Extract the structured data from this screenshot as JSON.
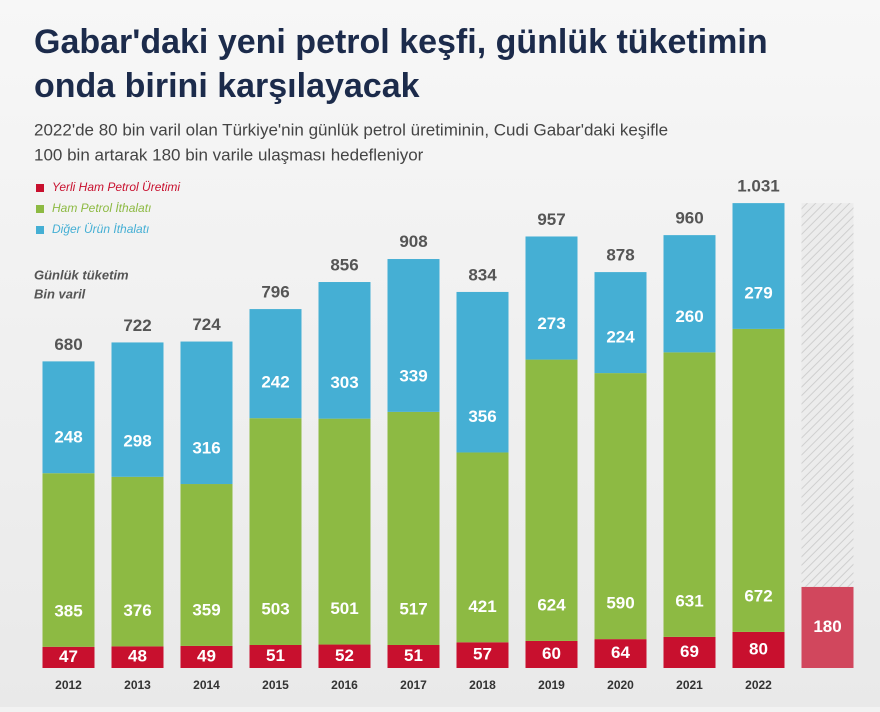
{
  "chart_data": {
    "type": "stacked_bar",
    "title": [
      "Gabar'daki yeni petrol keşfi, günlük tüketimin",
      "onda birini karşılayacak"
    ],
    "subtitle": [
      "2022'de 80 bin varil olan Türkiye'nin günlük petrol üretiminin, Cudi Gabar'daki keşifle",
      "100 bin artarak 180 bin varile ulaşması hedefleniyor"
    ],
    "y_label": [
      "Günlük tüketim",
      "Bin varil"
    ],
    "categories": [
      "2012",
      "2013",
      "2014",
      "2015",
      "2016",
      "2017",
      "2018",
      "2019",
      "2020",
      "2021",
      "2022",
      null
    ],
    "series": [
      {
        "name": "Yerli Ham Petrol Üretimi",
        "color": "#c8102e",
        "values": [
          47,
          48,
          49,
          51,
          52,
          51,
          57,
          60,
          64,
          69,
          80,
          180
        ]
      },
      {
        "name": "Ham Petrol İthalatı",
        "color": "#8dba43",
        "values": [
          385,
          376,
          359,
          503,
          501,
          517,
          421,
          624,
          590,
          631,
          672,
          null
        ]
      },
      {
        "name": "Diğer Ürün İthalatı",
        "color": "#45afd4",
        "values": [
          248,
          298,
          316,
          242,
          303,
          339,
          356,
          273,
          224,
          260,
          279,
          null
        ]
      }
    ],
    "totals": {
      "values": [
        680,
        722,
        724,
        796,
        856,
        908,
        834,
        957,
        878,
        960,
        1031,
        null
      ],
      "value_labels": [
        "680",
        "722",
        "724",
        "796",
        "856",
        "908",
        "834",
        "957",
        "878",
        "960",
        "1.031",
        null
      ]
    },
    "ylim": [
      0,
      1100
    ],
    "legend": "top-left"
  }
}
